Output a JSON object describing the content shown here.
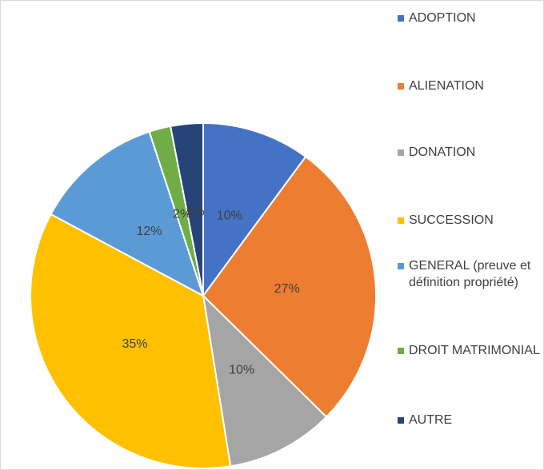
{
  "chart_data": {
    "type": "pie",
    "categories": [
      "ADOPTION",
      "ALIENATION",
      "DONATION",
      "SUCCESSION",
      "GENERAL (preuve et définition propriété)",
      "DROIT MATRIMONIAL",
      "AUTRE"
    ],
    "values": [
      10,
      27,
      10,
      35,
      12,
      2,
      3
    ],
    "value_labels": [
      "10%",
      "27%",
      "10%",
      "35%",
      "12%",
      "2%",
      "3%"
    ],
    "colors": [
      "#4472c4",
      "#ed7d31",
      "#a5a5a5",
      "#ffc000",
      "#5b9bd5",
      "#70ad47",
      "#264478"
    ],
    "legend": "right"
  }
}
